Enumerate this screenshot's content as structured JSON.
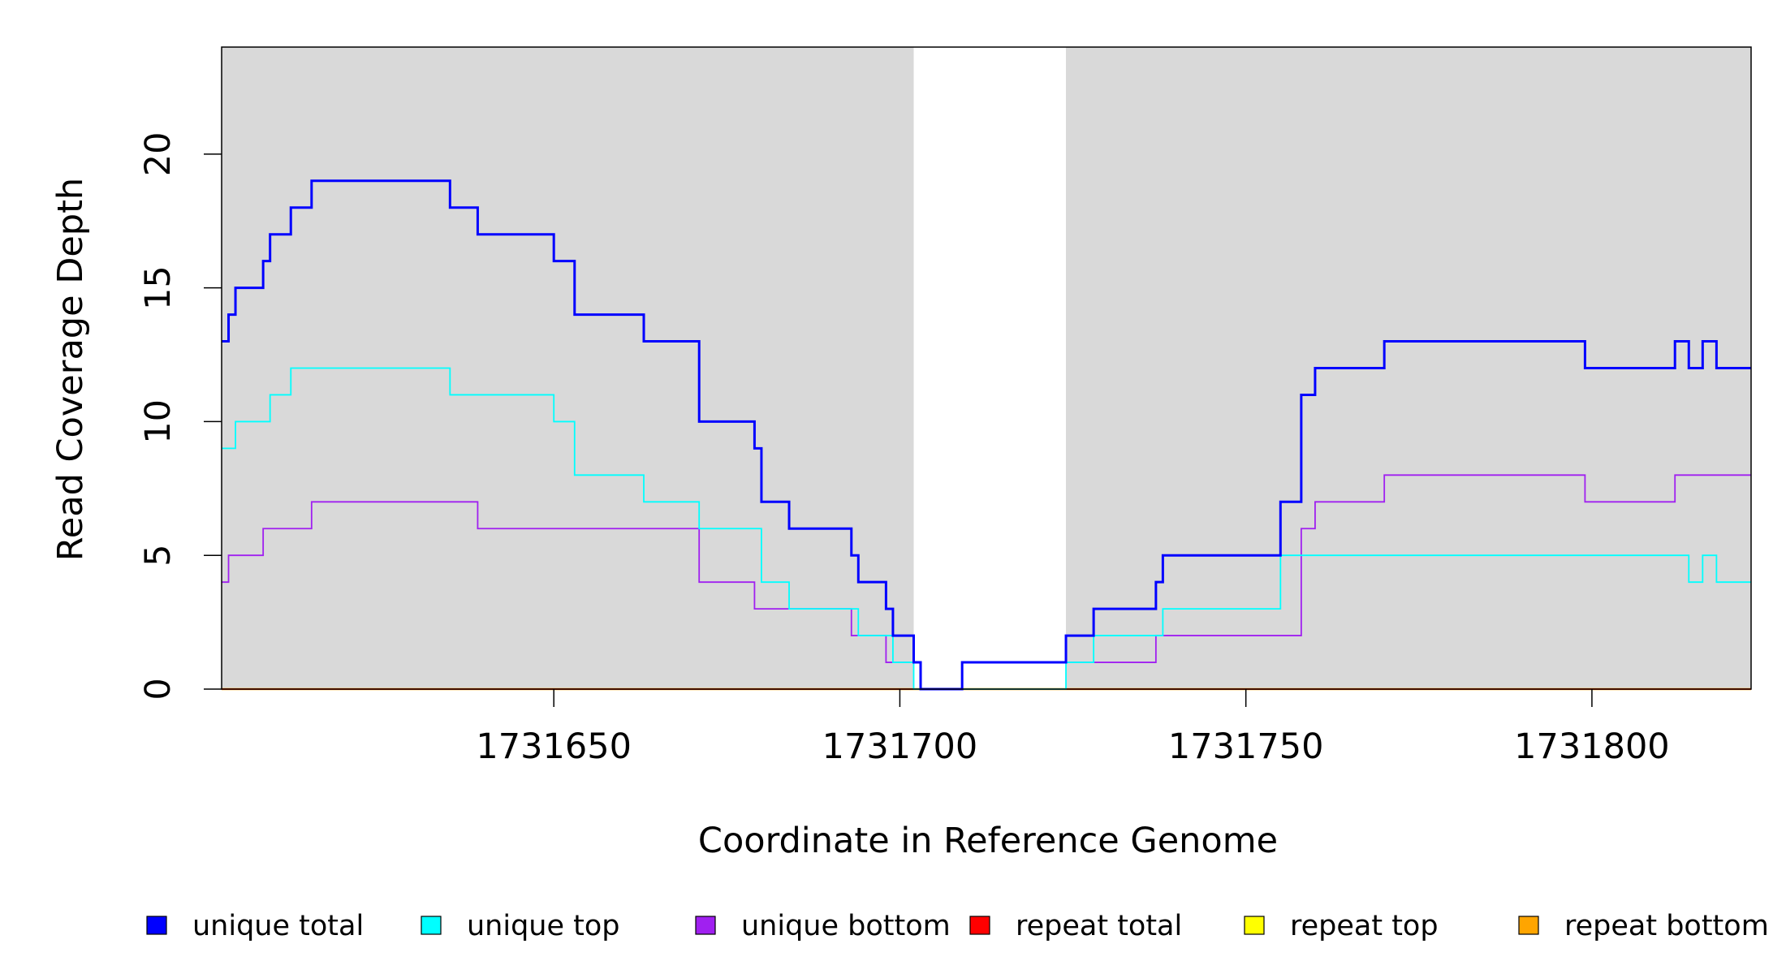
{
  "chart_data": {
    "type": "line",
    "step": true,
    "xlabel": "Coordinate in Reference Genome",
    "ylabel": "Read Coverage Depth",
    "xlim": [
      1731602,
      1731823
    ],
    "ylim": [
      0,
      24
    ],
    "x_ticks": [
      1731650,
      1731700,
      1731750,
      1731800
    ],
    "x_tick_labels": [
      "1731650",
      "1731700",
      "1731750",
      "1731800"
    ],
    "y_ticks": [
      0,
      5,
      10,
      15,
      20
    ],
    "y_tick_labels": [
      "0",
      "5",
      "10",
      "15",
      "20"
    ],
    "shaded_regions": [
      {
        "from": 1731602,
        "to": 1731702
      },
      {
        "from": 1731724,
        "to": 1731823
      }
    ],
    "series": [
      {
        "name": "unique total",
        "color": "#0000ff",
        "points": [
          [
            1731602,
            13
          ],
          [
            1731603,
            14
          ],
          [
            1731604,
            15
          ],
          [
            1731608,
            16
          ],
          [
            1731609,
            17
          ],
          [
            1731612,
            18
          ],
          [
            1731615,
            19
          ],
          [
            1731635,
            18
          ],
          [
            1731639,
            17
          ],
          [
            1731650,
            16
          ],
          [
            1731653,
            14
          ],
          [
            1731663,
            13
          ],
          [
            1731671,
            10
          ],
          [
            1731679,
            9
          ],
          [
            1731680,
            7
          ],
          [
            1731684,
            6
          ],
          [
            1731693,
            5
          ],
          [
            1731694,
            4
          ],
          [
            1731698,
            3
          ],
          [
            1731699,
            2
          ],
          [
            1731702,
            1
          ],
          [
            1731703,
            0
          ],
          [
            1731709,
            1
          ],
          [
            1731724,
            2
          ],
          [
            1731728,
            3
          ],
          [
            1731737,
            4
          ],
          [
            1731738,
            5
          ],
          [
            1731755,
            7
          ],
          [
            1731758,
            11
          ],
          [
            1731760,
            12
          ],
          [
            1731770,
            13
          ],
          [
            1731799,
            12
          ],
          [
            1731812,
            13
          ],
          [
            1731814,
            12
          ],
          [
            1731816,
            13
          ],
          [
            1731818,
            12
          ],
          [
            1731823,
            12
          ]
        ]
      },
      {
        "name": "unique top",
        "color": "#00ffff",
        "points": [
          [
            1731602,
            9
          ],
          [
            1731604,
            10
          ],
          [
            1731609,
            11
          ],
          [
            1731612,
            12
          ],
          [
            1731635,
            11
          ],
          [
            1731650,
            10
          ],
          [
            1731653,
            8
          ],
          [
            1731663,
            7
          ],
          [
            1731671,
            6
          ],
          [
            1731680,
            4
          ],
          [
            1731684,
            3
          ],
          [
            1731694,
            2
          ],
          [
            1731699,
            1
          ],
          [
            1731702,
            0
          ],
          [
            1731724,
            1
          ],
          [
            1731728,
            2
          ],
          [
            1731738,
            3
          ],
          [
            1731755,
            5
          ],
          [
            1731814,
            4
          ],
          [
            1731816,
            5
          ],
          [
            1731818,
            4
          ],
          [
            1731823,
            4
          ]
        ]
      },
      {
        "name": "unique bottom",
        "color": "#a020f0",
        "points": [
          [
            1731602,
            4
          ],
          [
            1731603,
            5
          ],
          [
            1731608,
            6
          ],
          [
            1731615,
            7
          ],
          [
            1731639,
            6
          ],
          [
            1731671,
            4
          ],
          [
            1731679,
            3
          ],
          [
            1731693,
            2
          ],
          [
            1731698,
            1
          ],
          [
            1731703,
            0
          ],
          [
            1731709,
            1
          ],
          [
            1731737,
            2
          ],
          [
            1731758,
            6
          ],
          [
            1731760,
            7
          ],
          [
            1731770,
            8
          ],
          [
            1731799,
            7
          ],
          [
            1731812,
            8
          ],
          [
            1731823,
            8
          ]
        ]
      },
      {
        "name": "repeat total",
        "color": "#ff0000",
        "points": [
          [
            1731602,
            0
          ],
          [
            1731823,
            0
          ]
        ]
      },
      {
        "name": "repeat top",
        "color": "#ffff00",
        "points": [
          [
            1731602,
            0
          ],
          [
            1731823,
            0
          ]
        ]
      },
      {
        "name": "repeat bottom",
        "color": "#ffa500",
        "points": [
          [
            1731602,
            0
          ],
          [
            1731823,
            0
          ]
        ]
      }
    ],
    "legend": {
      "position": "bottom",
      "entries": [
        {
          "label": "unique total",
          "color": "#0000ff"
        },
        {
          "label": "unique top",
          "color": "#00ffff"
        },
        {
          "label": "unique bottom",
          "color": "#a020f0"
        },
        {
          "label": "repeat total",
          "color": "#ff0000"
        },
        {
          "label": "repeat top",
          "color": "#ffff00"
        },
        {
          "label": "repeat bottom",
          "color": "#ffa500"
        }
      ]
    }
  }
}
